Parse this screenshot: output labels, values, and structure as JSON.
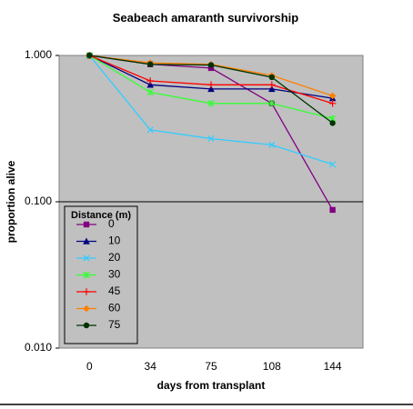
{
  "chart_data": {
    "type": "line",
    "title": "Seabeach amaranth survivorship",
    "xlabel": "days from transplant",
    "ylabel": "proportion alive",
    "categories": [
      "0",
      "34",
      "75",
      "108",
      "144"
    ],
    "y_scale": "log",
    "ylim": [
      0.01,
      1.0
    ],
    "y_ticks": [
      "0.010",
      "0.100",
      "1.000"
    ],
    "gridlines": "horizontal at major ticks",
    "plot_background": "#c0c0c0",
    "legend": {
      "title": "Distance (m)",
      "position": "bottom-left inside plot"
    },
    "series": [
      {
        "name": "0",
        "color": "#800080",
        "marker": "square",
        "values": [
          1.0,
          0.87,
          0.82,
          0.47,
          0.088
        ]
      },
      {
        "name": "10",
        "color": "#000080",
        "marker": "triangle",
        "values": [
          1.0,
          0.63,
          0.59,
          0.59,
          0.51
        ]
      },
      {
        "name": "20",
        "color": "#33ccff",
        "marker": "x",
        "values": [
          1.0,
          0.31,
          0.27,
          0.245,
          0.18
        ]
      },
      {
        "name": "30",
        "color": "#33ff33",
        "marker": "asterisk",
        "values": [
          1.0,
          0.56,
          0.47,
          0.47,
          0.37
        ]
      },
      {
        "name": "45",
        "color": "#ff0000",
        "marker": "plus",
        "values": [
          1.0,
          0.67,
          0.63,
          0.63,
          0.47
        ]
      },
      {
        "name": "60",
        "color": "#ff8000",
        "marker": "diamond",
        "values": [
          1.0,
          0.89,
          0.87,
          0.73,
          0.53
        ]
      },
      {
        "name": "75",
        "color": "#003300",
        "marker": "circle",
        "values": [
          1.0,
          0.87,
          0.86,
          0.71,
          0.345
        ]
      }
    ]
  }
}
